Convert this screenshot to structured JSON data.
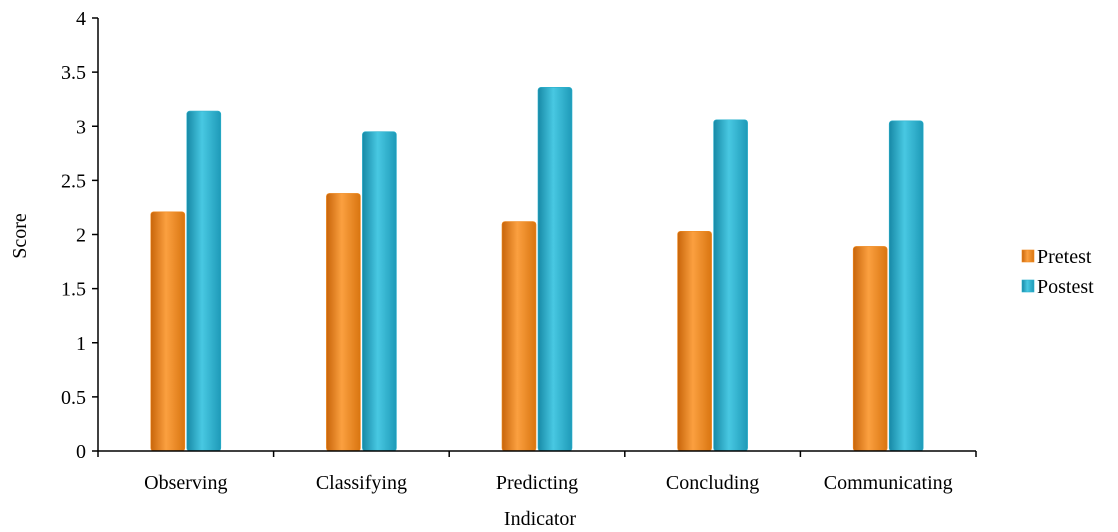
{
  "chart_data": {
    "type": "bar",
    "title": "",
    "xlabel": "Indicator",
    "ylabel": "Score",
    "categories": [
      "Observing",
      "Classifying",
      "Predicting",
      "Concluding",
      "Communicating"
    ],
    "series": [
      {
        "name": "Pretest",
        "values": [
          2.21,
          2.38,
          2.12,
          2.03,
          1.89
        ],
        "color": "#F0891E"
      },
      {
        "name": "Postest",
        "values": [
          3.14,
          2.95,
          3.36,
          3.06,
          3.05
        ],
        "color": "#2AB0CC"
      }
    ],
    "ylim": [
      0,
      4
    ],
    "yticks": [
      "0",
      "0.5",
      "1",
      "1.5",
      "2",
      "2.5",
      "3",
      "3.5",
      "4"
    ],
    "grid": false,
    "legend_position": "right"
  }
}
